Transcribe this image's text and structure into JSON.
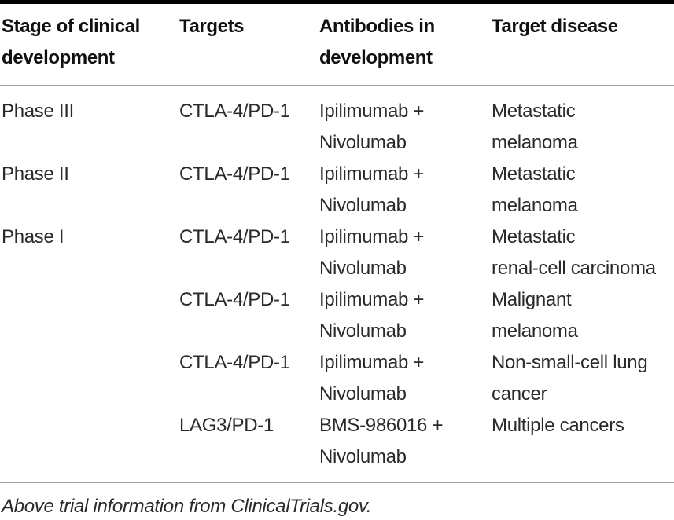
{
  "figure": {
    "type": "table",
    "columns": {
      "stage": "Stage of clinical\ndevelopment",
      "targets": "Targets",
      "antibodies": "Antibodies in\ndevelopment",
      "disease": "Target disease"
    },
    "rows": [
      {
        "stage": "Phase III",
        "targets": "CTLA-4/PD-1",
        "antibodies": "Ipilimumab +\nNivolumab",
        "disease": "Metastatic\nmelanoma"
      },
      {
        "stage": "Phase II",
        "targets": "CTLA-4/PD-1",
        "antibodies": "Ipilimumab +\nNivolumab",
        "disease": "Metastatic\nmelanoma"
      },
      {
        "stage": "Phase I",
        "targets": "CTLA-4/PD-1",
        "antibodies": "Ipilimumab +\nNivolumab",
        "disease": "Metastatic\nrenal-cell carcinoma"
      },
      {
        "stage": "",
        "targets": "CTLA-4/PD-1",
        "antibodies": "Ipilimumab +\nNivolumab",
        "disease": "Malignant\nmelanoma"
      },
      {
        "stage": "",
        "targets": "CTLA-4/PD-1",
        "antibodies": "Ipilimumab +\nNivolumab",
        "disease": "Non-small-cell lung\ncancer"
      },
      {
        "stage": "",
        "targets": "LAG3/PD-1",
        "antibodies": "BMS-986016 +\nNivolumab",
        "disease": "Multiple cancers"
      }
    ],
    "footnote": "Above trial information from ClinicalTrials.gov.",
    "colors": {
      "text": "#2a2a2a",
      "header_text": "#111111",
      "rule_heavy": "#000000",
      "rule_light": "#a6a6a6",
      "background": "#ffffff"
    }
  }
}
